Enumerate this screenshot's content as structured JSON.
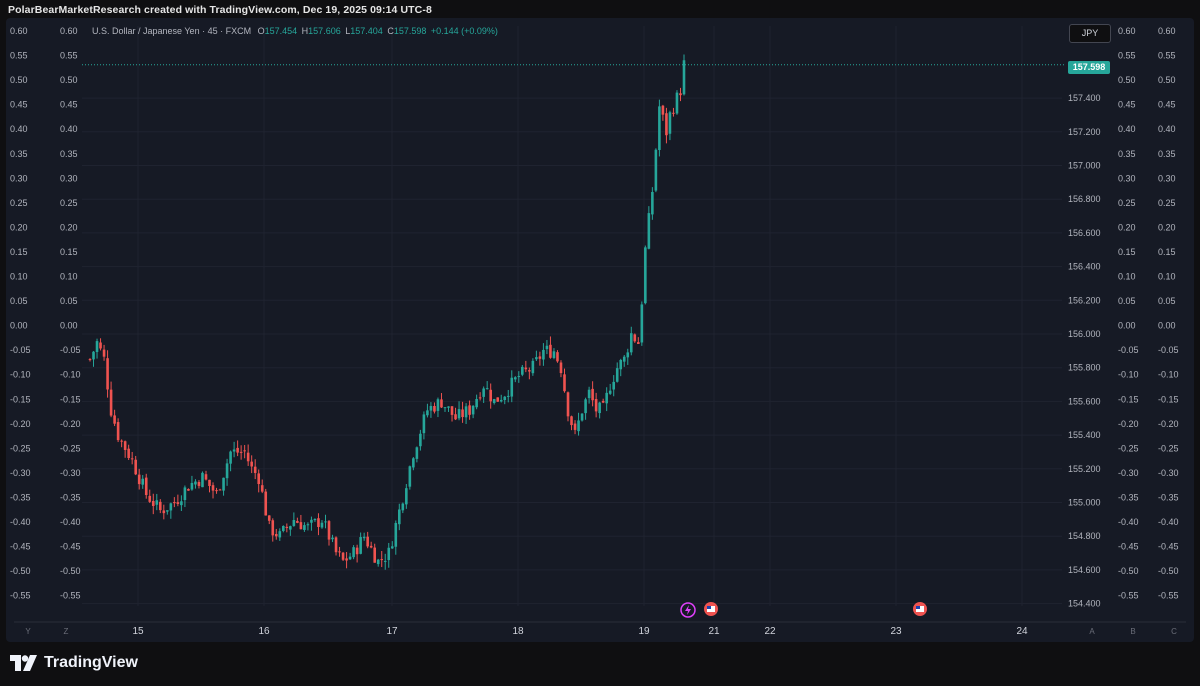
{
  "header": {
    "text": "PolarBearMarketResearch created with TradingView.com, Dec 19, 2025 09:14 UTC-8"
  },
  "legend": {
    "symbol": "U.S. Dollar / Japanese Yen · 45 · FXCM",
    "o_label": "O",
    "o": "157.454",
    "h_label": "H",
    "h": "157.606",
    "l_label": "L",
    "l": "157.404",
    "c_label": "C",
    "c": "157.598",
    "change": "+0.144 (+0.09%)"
  },
  "currency_button": "JPY",
  "last_price": "157.598",
  "footer": {
    "brand": "TradingView"
  },
  "colors": {
    "up": "#26a69a",
    "down": "#ef5350",
    "background": "#161a25",
    "grid": "#1f2330",
    "event_icon": "#e040fb"
  },
  "chart_data": {
    "type": "candlestick",
    "title": "U.S. Dollar / Japanese Yen · 45 · FXCM",
    "x_tick_labels": [
      "15",
      "16",
      "17",
      "18",
      "19",
      "21",
      "22",
      "23",
      "24"
    ],
    "y_right_ticks": [
      "157.400",
      "157.200",
      "157.000",
      "156.800",
      "156.600",
      "156.400",
      "156.200",
      "156.000",
      "155.800",
      "155.600",
      "155.400",
      "155.200",
      "155.000",
      "154.800",
      "154.600",
      "154.400"
    ],
    "y_right_range": [
      154.35,
      157.75
    ],
    "overlay_axis_ticks": [
      "0.60",
      "0.55",
      "0.50",
      "0.45",
      "0.40",
      "0.35",
      "0.30",
      "0.25",
      "0.20",
      "0.15",
      "0.10",
      "0.05",
      "0.00",
      "-0.05",
      "-0.10",
      "-0.15",
      "-0.20",
      "-0.25",
      "-0.30",
      "-0.35",
      "-0.40",
      "-0.45",
      "-0.50",
      "-0.55"
    ],
    "bottom_scale_letters_left": [
      "Y",
      "Z"
    ],
    "bottom_scale_letters_right": [
      "A",
      "B",
      "C"
    ],
    "last_price": 157.598,
    "anchors": [
      {
        "x": 0,
        "p": 155.85
      },
      {
        "x": 2,
        "p": 155.95
      },
      {
        "x": 4,
        "p": 155.85
      },
      {
        "x": 6,
        "p": 155.55
      },
      {
        "x": 8,
        "p": 155.4
      },
      {
        "x": 12,
        "p": 155.25
      },
      {
        "x": 16,
        "p": 155.05
      },
      {
        "x": 20,
        "p": 154.95
      },
      {
        "x": 24,
        "p": 155.0
      },
      {
        "x": 28,
        "p": 155.1
      },
      {
        "x": 32,
        "p": 155.15
      },
      {
        "x": 36,
        "p": 155.05
      },
      {
        "x": 40,
        "p": 155.3
      },
      {
        "x": 44,
        "p": 155.3
      },
      {
        "x": 46,
        "p": 155.2
      },
      {
        "x": 48,
        "p": 155.15
      },
      {
        "x": 51,
        "p": 154.85
      },
      {
        "x": 54,
        "p": 154.8
      },
      {
        "x": 58,
        "p": 154.9
      },
      {
        "x": 62,
        "p": 154.85
      },
      {
        "x": 66,
        "p": 154.9
      },
      {
        "x": 70,
        "p": 154.7
      },
      {
        "x": 72,
        "p": 154.65
      },
      {
        "x": 75,
        "p": 154.7
      },
      {
        "x": 78,
        "p": 154.8
      },
      {
        "x": 82,
        "p": 154.65
      },
      {
        "x": 85,
        "p": 154.7
      },
      {
        "x": 88,
        "p": 154.95
      },
      {
        "x": 92,
        "p": 155.3
      },
      {
        "x": 96,
        "p": 155.55
      },
      {
        "x": 100,
        "p": 155.6
      },
      {
        "x": 104,
        "p": 155.5
      },
      {
        "x": 108,
        "p": 155.55
      },
      {
        "x": 112,
        "p": 155.7
      },
      {
        "x": 115,
        "p": 155.6
      },
      {
        "x": 118,
        "p": 155.65
      },
      {
        "x": 122,
        "p": 155.75
      },
      {
        "x": 126,
        "p": 155.8
      },
      {
        "x": 129,
        "p": 155.9
      },
      {
        "x": 132,
        "p": 155.9
      },
      {
        "x": 134,
        "p": 155.8
      },
      {
        "x": 136,
        "p": 155.55
      },
      {
        "x": 138,
        "p": 155.4
      },
      {
        "x": 140,
        "p": 155.55
      },
      {
        "x": 142,
        "p": 155.65
      },
      {
        "x": 144,
        "p": 155.55
      },
      {
        "x": 146,
        "p": 155.55
      },
      {
        "x": 148,
        "p": 155.7
      },
      {
        "x": 150,
        "p": 155.8
      },
      {
        "x": 152,
        "p": 155.85
      },
      {
        "x": 154,
        "p": 156.0
      },
      {
        "x": 156,
        "p": 155.95
      },
      {
        "x": 157,
        "p": 156.2
      },
      {
        "x": 158,
        "p": 156.5
      },
      {
        "x": 160,
        "p": 156.85
      },
      {
        "x": 161,
        "p": 157.1
      },
      {
        "x": 162,
        "p": 157.35
      },
      {
        "x": 164,
        "p": 157.2
      },
      {
        "x": 165,
        "p": 157.3
      },
      {
        "x": 167,
        "p": 157.4
      },
      {
        "x": 168,
        "p": 157.45
      },
      {
        "x": 169,
        "p": 157.6
      }
    ]
  }
}
